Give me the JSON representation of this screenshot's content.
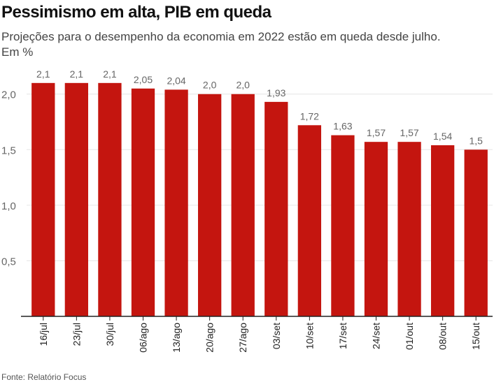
{
  "title": "Pessimismo em alta, PIB em queda",
  "subtitle": "Projeções para o desempenho da economia em 2022 estão em queda desde julho.",
  "unit": "Em %",
  "source": "Fonte: Relatório Focus",
  "colors": {
    "bar": "#c4150f",
    "label": "#666666",
    "grid": "#e6e6e6",
    "axis": "#222222"
  },
  "chart_data": {
    "type": "bar",
    "categories": [
      "16/jul",
      "23/jul",
      "30/jul",
      "06/ago",
      "13/ago",
      "20/ago",
      "27/ago",
      "03/set",
      "10/set",
      "17/set",
      "24/set",
      "01/out",
      "08/out",
      "15/out"
    ],
    "values": [
      2.1,
      2.1,
      2.1,
      2.05,
      2.04,
      2.0,
      2.0,
      1.93,
      1.72,
      1.63,
      1.57,
      1.57,
      1.54,
      1.5
    ],
    "value_labels": [
      "2,1",
      "2,1",
      "2,1",
      "2,05",
      "2,04",
      "2,0",
      "2,0",
      "1,93",
      "1,72",
      "1,63",
      "1,57",
      "1,57",
      "1,54",
      "1,5"
    ],
    "yticks": [
      0.5,
      1.0,
      1.5,
      2.0
    ],
    "ytick_labels": [
      "0,5",
      "1,0",
      "1,5",
      "2,0"
    ],
    "ylim": [
      0,
      2.3
    ],
    "grid": true
  }
}
